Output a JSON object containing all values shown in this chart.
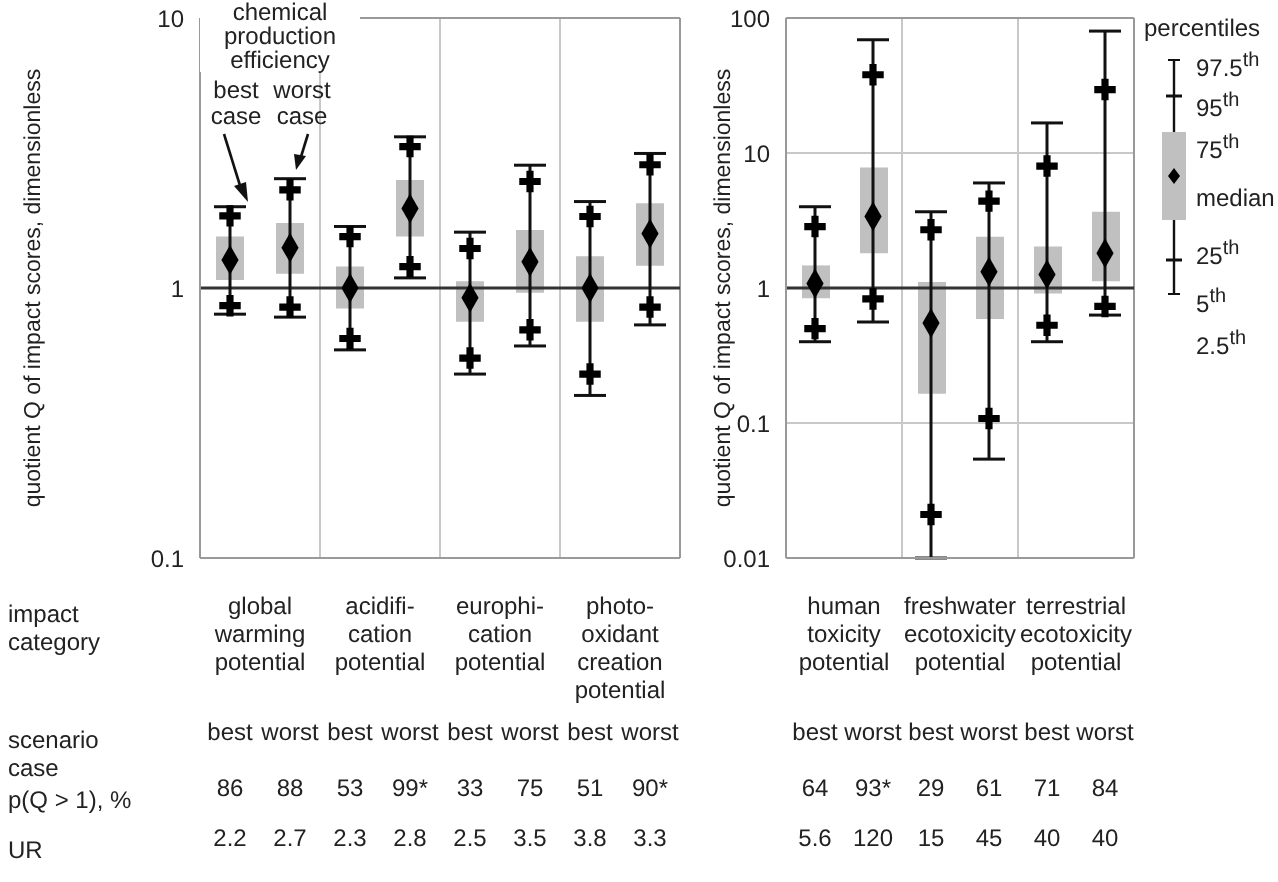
{
  "chart_data": [
    {
      "type": "box",
      "ylabel": "quotient Q of impact scores, dimensionless",
      "log": "y",
      "ylim": [
        0.1,
        10
      ],
      "yticks": [
        0.1,
        1,
        10
      ],
      "grid": "x",
      "color": "#c0c0c0",
      "categories": [
        "best",
        "worst",
        "best",
        "worst",
        "best",
        "worst",
        "best",
        "worst"
      ],
      "boxes": [
        {
          "low": 0.8,
          "q1": 1.07,
          "median": 1.27,
          "q3": 1.55,
          "high": 2.0
        },
        {
          "low": 0.78,
          "q1": 1.13,
          "median": 1.41,
          "q3": 1.74,
          "high": 2.54
        },
        {
          "low": 0.59,
          "q1": 0.84,
          "median": 1.0,
          "q3": 1.2,
          "high": 1.69
        },
        {
          "low": 1.09,
          "q1": 1.55,
          "median": 1.97,
          "q3": 2.51,
          "high": 3.63
        },
        {
          "low": 0.48,
          "q1": 0.75,
          "median": 0.92,
          "q3": 1.06,
          "high": 1.61
        },
        {
          "low": 0.61,
          "q1": 0.96,
          "median": 1.25,
          "q3": 1.64,
          "high": 2.85
        },
        {
          "low": 0.4,
          "q1": 0.75,
          "median": 1.0,
          "q3": 1.31,
          "high": 2.09
        },
        {
          "low": 0.73,
          "q1": 1.21,
          "median": 1.59,
          "q3": 2.06,
          "high": 3.15
        }
      ],
      "series": [
        {
          "type": "scatter",
          "marker": "cross",
          "color": "#000000",
          "values": [
            0.86,
            0.85,
            0.65,
            1.2,
            0.55,
            0.7,
            0.48,
            0.85
          ]
        },
        {
          "type": "scatter",
          "marker": "cross",
          "color": "#000000",
          "values": [
            1.85,
            2.31,
            1.55,
            3.34,
            1.4,
            2.48,
            1.84,
            2.86
          ]
        }
      ],
      "ref_lines": [
        {
          "axis": "y",
          "value": 1,
          "color": "#333333"
        }
      ],
      "annotations": [
        "impact category",
        "scenario case",
        "p(Q > 1), %",
        "UR",
        "chemical production efficiency",
        "best case",
        "worst case",
        "global warming potential",
        "acidifi-cation potential",
        "europhi-cation potential",
        "photo-oxidant creation potential",
        "86",
        "88",
        "53",
        "99*",
        "33",
        "75",
        "51",
        "90*",
        "2.2",
        "2.7",
        "2.3",
        "2.8",
        "2.5",
        "3.5",
        "3.8",
        "3.3"
      ]
    },
    {
      "type": "box",
      "ylabel": "quotient Q of impact scores, dimensionless",
      "log": "y",
      "ylim": [
        0.01,
        100
      ],
      "yticks": [
        0.01,
        0.1,
        1,
        10,
        100
      ],
      "grid": true,
      "color": "#c0c0c0",
      "legend_title": "percentiles",
      "categories": [
        "best",
        "worst",
        "best",
        "worst",
        "best",
        "worst"
      ],
      "boxes": [
        {
          "low": 0.4,
          "q1": 0.84,
          "median": 1.08,
          "q3": 1.47,
          "high": 4.0
        },
        {
          "low": 0.56,
          "q1": 1.81,
          "median": 3.39,
          "q3": 7.8,
          "high": 69
        },
        {
          "low": 0.01,
          "q1": 0.165,
          "median": 0.55,
          "q3": 1.11,
          "high": 3.67
        },
        {
          "low": 0.054,
          "q1": 0.59,
          "median": 1.32,
          "q3": 2.4,
          "high": 6.0
        },
        {
          "low": 0.4,
          "q1": 0.91,
          "median": 1.26,
          "q3": 2.03,
          "high": 16.7
        },
        {
          "low": 0.63,
          "q1": 1.12,
          "median": 1.81,
          "q3": 3.67,
          "high": 80
        }
      ],
      "series": [
        {
          "type": "scatter",
          "marker": "cross",
          "color": "#000000",
          "values": [
            0.5,
            0.83,
            0.021,
            0.108,
            0.53,
            0.73
          ]
        },
        {
          "type": "scatter",
          "marker": "cross",
          "color": "#000000",
          "values": [
            2.85,
            38,
            2.7,
            4.4,
            8.0,
            29.5
          ]
        }
      ],
      "ref_lines": [
        {
          "axis": "y",
          "value": 1,
          "color": "#333333"
        }
      ],
      "annotations": [
        "97.5$^{th}$",
        "95$^{th}$",
        "75$^{th}$",
        "median",
        "25$^{th}$",
        "5$^{th}$",
        "2.5$^{th}$",
        "human toxicity potential",
        "freshwater ecotoxicity potential",
        "terrestrial ecotoxicity potential",
        "64",
        "93*",
        "29",
        "61",
        "71",
        "84",
        "5.6",
        "120",
        "15",
        "45",
        "40",
        "40"
      ]
    }
  ]
}
